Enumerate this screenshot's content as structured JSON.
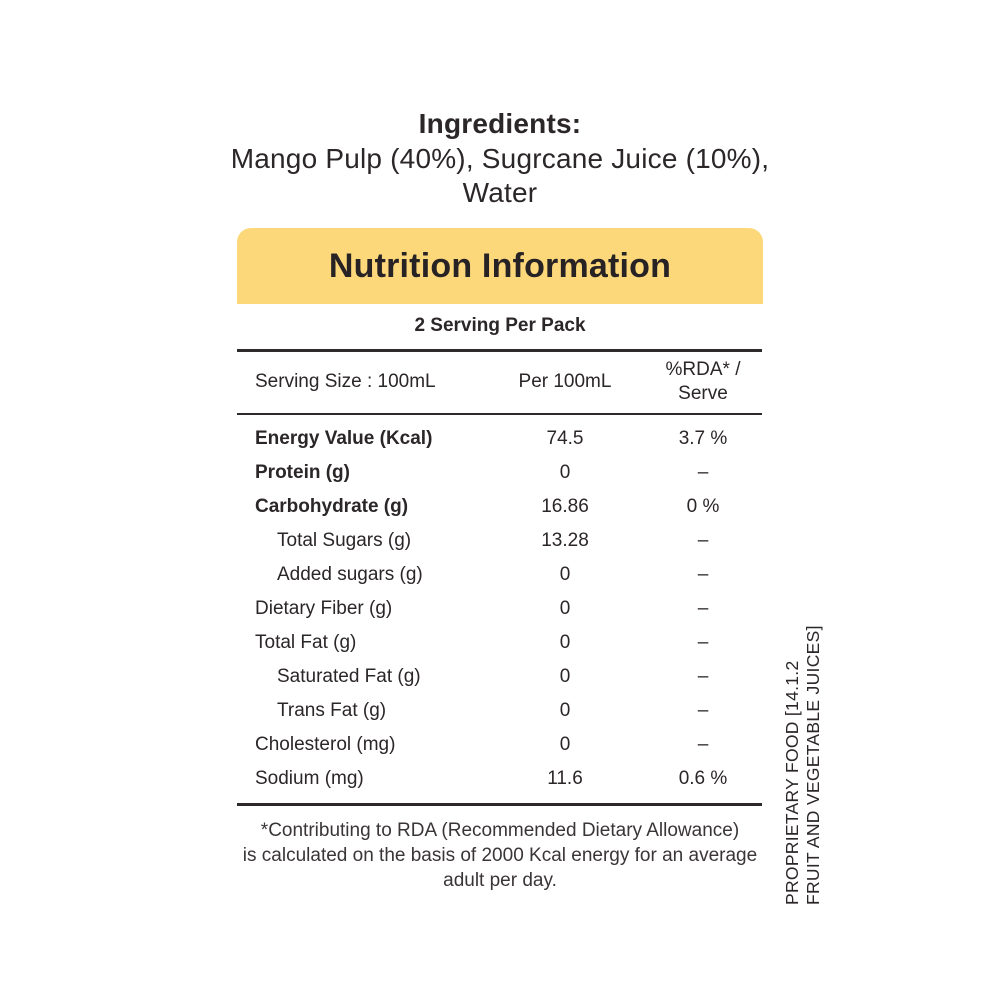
{
  "page": {
    "background": "#ffffff",
    "text_color": "#2b2627",
    "accent_yellow": "#fcd87b"
  },
  "ingredients": {
    "heading": "Ingredients:",
    "line1": "Mango Pulp (40%), Sugrcane Juice (10%),",
    "line2": "Water"
  },
  "nutrition": {
    "banner_title": "Nutrition Information",
    "servings": "2 Serving Per Pack",
    "header": {
      "col1": "Serving Size : 100mL",
      "col2": "Per 100mL",
      "col3_line1": "%RDA* /",
      "col3_line2": "Serve"
    },
    "rows": [
      {
        "label": "Energy Value (Kcal)",
        "per100": "74.5",
        "rda": "3.7 %",
        "bold": true,
        "indent": false
      },
      {
        "label": "Protein (g)",
        "per100": "0",
        "rda": "–",
        "bold": true,
        "indent": false
      },
      {
        "label": "Carbohydrate (g)",
        "per100": "16.86",
        "rda": "0 %",
        "bold": true,
        "indent": false
      },
      {
        "label": "Total Sugars (g)",
        "per100": "13.28",
        "rda": "–",
        "bold": false,
        "indent": true
      },
      {
        "label": "Added sugars (g)",
        "per100": "0",
        "rda": "–",
        "bold": false,
        "indent": true
      },
      {
        "label": "Dietary Fiber (g)",
        "per100": "0",
        "rda": "–",
        "bold": false,
        "indent": false
      },
      {
        "label": "Total Fat (g)",
        "per100": "0",
        "rda": "–",
        "bold": false,
        "indent": false
      },
      {
        "label": "Saturated Fat (g)",
        "per100": "0",
        "rda": "–",
        "bold": false,
        "indent": true
      },
      {
        "label": "Trans Fat (g)",
        "per100": "0",
        "rda": "–",
        "bold": false,
        "indent": true
      },
      {
        "label": "Cholesterol (mg)",
        "per100": "0",
        "rda": "–",
        "bold": false,
        "indent": false
      },
      {
        "label": "Sodium (mg)",
        "per100": "11.6",
        "rda": "0.6 %",
        "bold": false,
        "indent": false
      }
    ],
    "footnote": [
      "*Contributing to RDA (Recommended Dietary Allowance)",
      "is calculated on the basis of 2000 Kcal energy for an average",
      "adult per day."
    ]
  },
  "side_label": {
    "line1": "PROPRIETARY FOOD [14.1.2",
    "line2": "FRUIT AND VEGETABLE JUICES]"
  }
}
